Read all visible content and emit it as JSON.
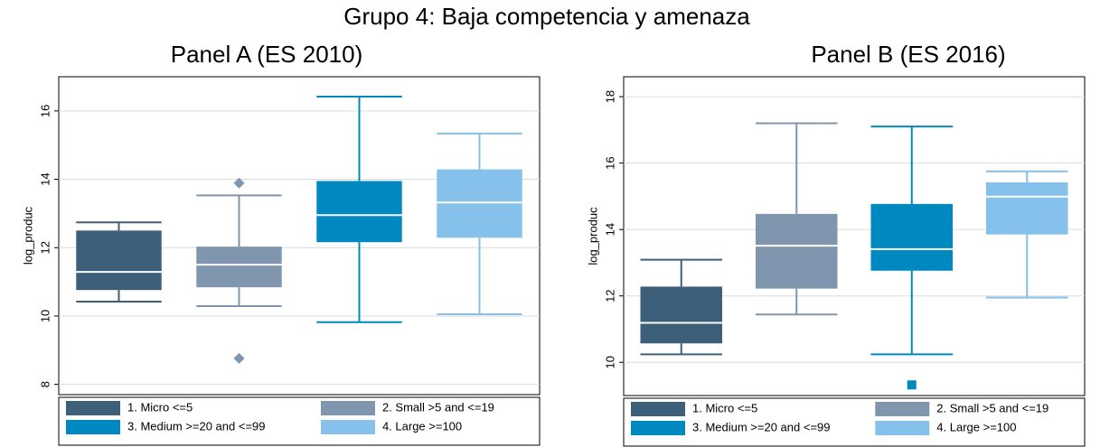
{
  "title": "Grupo 4: Baja competencia y amenaza",
  "chart_data": [
    {
      "type": "box",
      "title": "Panel A (ES 2010)",
      "y_label": "log_produc",
      "ylim": [
        7.7,
        17
      ],
      "yticks": [
        8,
        10,
        12,
        14,
        16
      ],
      "grid": true,
      "outlier_marker": "diamond",
      "legend": "bottom",
      "series": [
        {
          "name": "1. Micro <=5",
          "color": "#3e5f7a",
          "whislo": 10.42,
          "q1": 10.76,
          "median": 11.29,
          "q3": 12.5,
          "whishi": 12.74,
          "outliers": []
        },
        {
          "name": "2. Small >5 and <=19",
          "color": "#7f96ae",
          "whislo": 10.29,
          "q1": 10.84,
          "median": 11.5,
          "q3": 12.03,
          "whishi": 13.53,
          "outliers": [
            13.89,
            8.76
          ]
        },
        {
          "name": "3. Medium >=20 and <=99",
          "color": "#0089c0",
          "whislo": 9.82,
          "q1": 12.16,
          "median": 12.95,
          "q3": 13.95,
          "whishi": 16.42,
          "outliers": []
        },
        {
          "name": "4. Large >=100",
          "color": "#85c1ea",
          "whislo": 10.05,
          "q1": 12.29,
          "median": 13.32,
          "q3": 14.29,
          "whishi": 15.34,
          "outliers": []
        }
      ]
    },
    {
      "type": "box",
      "title": "Panel B (ES 2016)",
      "y_label": "log_produc",
      "ylim": [
        9,
        18.6
      ],
      "yticks": [
        10,
        12,
        14,
        16,
        18
      ],
      "grid": true,
      "outlier_marker": "square",
      "legend": "bottom",
      "series": [
        {
          "name": "1. Micro <=5",
          "color": "#3e5f7a",
          "whislo": 10.24,
          "q1": 10.57,
          "median": 11.19,
          "q3": 12.28,
          "whishi": 13.09,
          "outliers": []
        },
        {
          "name": "2. Small >5 and <=19",
          "color": "#7f96ae",
          "whislo": 11.44,
          "q1": 12.22,
          "median": 13.51,
          "q3": 14.47,
          "whishi": 17.2,
          "outliers": []
        },
        {
          "name": "3. Medium >=20 and <=99",
          "color": "#0089c0",
          "whislo": 10.24,
          "q1": 12.76,
          "median": 13.41,
          "q3": 14.77,
          "whishi": 17.1,
          "outliers": [
            9.32
          ]
        },
        {
          "name": "4. Large >=100",
          "color": "#85c1ea",
          "whislo": 11.95,
          "q1": 13.85,
          "median": 14.99,
          "q3": 15.42,
          "whishi": 15.75,
          "outliers": []
        }
      ]
    }
  ]
}
